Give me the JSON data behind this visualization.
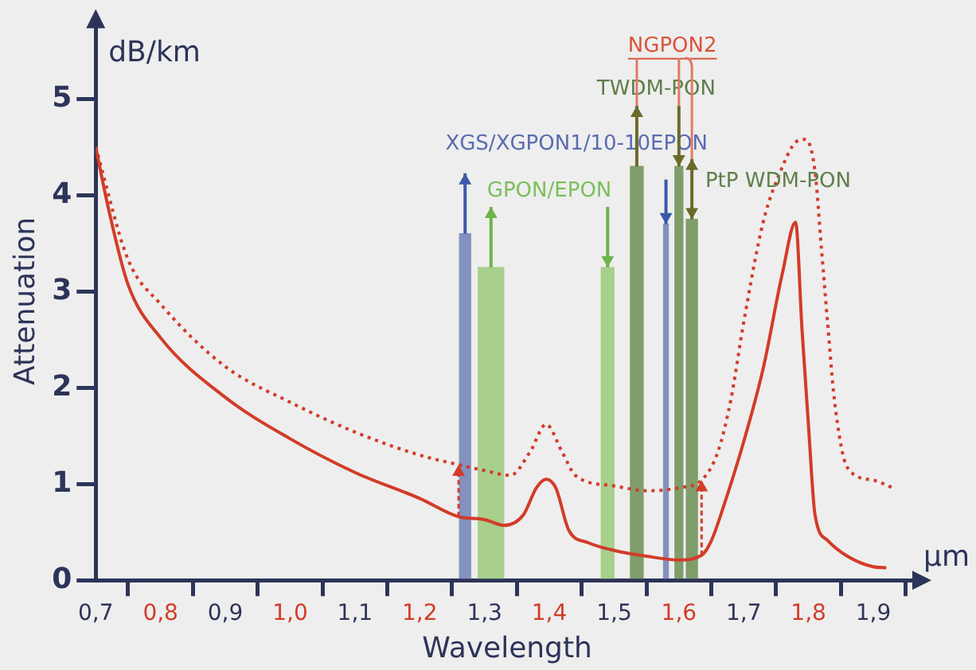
{
  "chart_data": {
    "type": "line",
    "xlabel": "Wavelength",
    "ylabel": "Attenuation",
    "xlim": [
      0.7,
      1.97
    ],
    "ylim": [
      0,
      5.8
    ],
    "xticks": [
      {
        "value": 0.7,
        "label": "0,7"
      },
      {
        "value": 0.8,
        "label": "0,8"
      },
      {
        "value": 0.9,
        "label": "0,9"
      },
      {
        "value": 1.0,
        "label": "1,0"
      },
      {
        "value": 1.1,
        "label": "1,1"
      },
      {
        "value": 1.2,
        "label": "1,2"
      },
      {
        "value": 1.3,
        "label": "1,3"
      },
      {
        "value": 1.4,
        "label": "1,4"
      },
      {
        "value": 1.5,
        "label": "1,5"
      },
      {
        "value": 1.6,
        "label": "1,6"
      },
      {
        "value": 1.7,
        "label": "1,7"
      },
      {
        "value": 1.8,
        "label": "1,8"
      },
      {
        "value": 1.9,
        "label": "1,9"
      }
    ],
    "yticks": [
      0,
      1,
      2,
      3,
      4,
      5
    ],
    "grid": false,
    "legend": false,
    "marker": "none",
    "series": [
      {
        "type": "bar",
        "x": [
          1.27,
          1.31,
          1.49,
          1.535,
          1.58,
          1.6,
          1.62
        ],
        "values": [
          3.6,
          3.25,
          3.25,
          4.3,
          3.7,
          4.3,
          3.75
        ],
        "colors": [
          "#8391bf",
          "#a8cf8c",
          "#a8cf8c",
          "#7f9d6b",
          "#8391bf",
          "#7f9d6b",
          "#7f9d6b"
        ]
      },
      {
        "color": "#d23c28",
        "line_style": "solid",
        "x": [
          0.7,
          0.72,
          0.75,
          0.8,
          0.9,
          1.0,
          1.1,
          1.2,
          1.26,
          1.3,
          1.33,
          1.36,
          1.38,
          1.395,
          1.41,
          1.43,
          1.46,
          1.5,
          1.55,
          1.6,
          1.635,
          1.65,
          1.67,
          1.7,
          1.73,
          1.76,
          1.78,
          1.79,
          1.8,
          1.81,
          1.83,
          1.86,
          1.9,
          1.92
        ],
        "values": [
          4.5,
          3.85,
          3.07,
          2.52,
          1.9,
          1.47,
          1.12,
          0.85,
          0.66,
          0.63,
          0.57,
          0.68,
          0.96,
          1.05,
          0.96,
          0.52,
          0.39,
          0.31,
          0.25,
          0.21,
          0.26,
          0.41,
          0.79,
          1.44,
          2.2,
          3.2,
          3.72,
          2.6,
          1.6,
          0.68,
          0.41,
          0.25,
          0.14,
          0.13
        ]
      },
      {
        "color": "#d23c28",
        "line_style": "dotted",
        "x": [
          0.7,
          0.75,
          0.8,
          0.9,
          1.0,
          1.1,
          1.2,
          1.26,
          1.3,
          1.34,
          1.37,
          1.395,
          1.42,
          1.44,
          1.5,
          1.55,
          1.6,
          1.635,
          1.66,
          1.68,
          1.7,
          1.73,
          1.76,
          1.78,
          1.795,
          1.81,
          1.82,
          1.83,
          1.84,
          1.86,
          1.9,
          1.93
        ],
        "values": [
          4.5,
          3.33,
          2.87,
          2.22,
          1.85,
          1.54,
          1.3,
          1.2,
          1.14,
          1.09,
          1.33,
          1.62,
          1.33,
          1.09,
          0.98,
          0.93,
          0.96,
          1.04,
          1.33,
          1.87,
          2.68,
          3.72,
          4.3,
          4.55,
          4.58,
          4.25,
          3.44,
          2.63,
          1.87,
          1.17,
          1.04,
          0.96
        ]
      }
    ],
    "annotations": [
      "dB/km",
      "µm",
      "NGPON2",
      "TWDM-PON",
      "XGS/XGPON1/10-10EPON",
      "GPON/EPON",
      "PtP WDM-PON"
    ]
  }
}
